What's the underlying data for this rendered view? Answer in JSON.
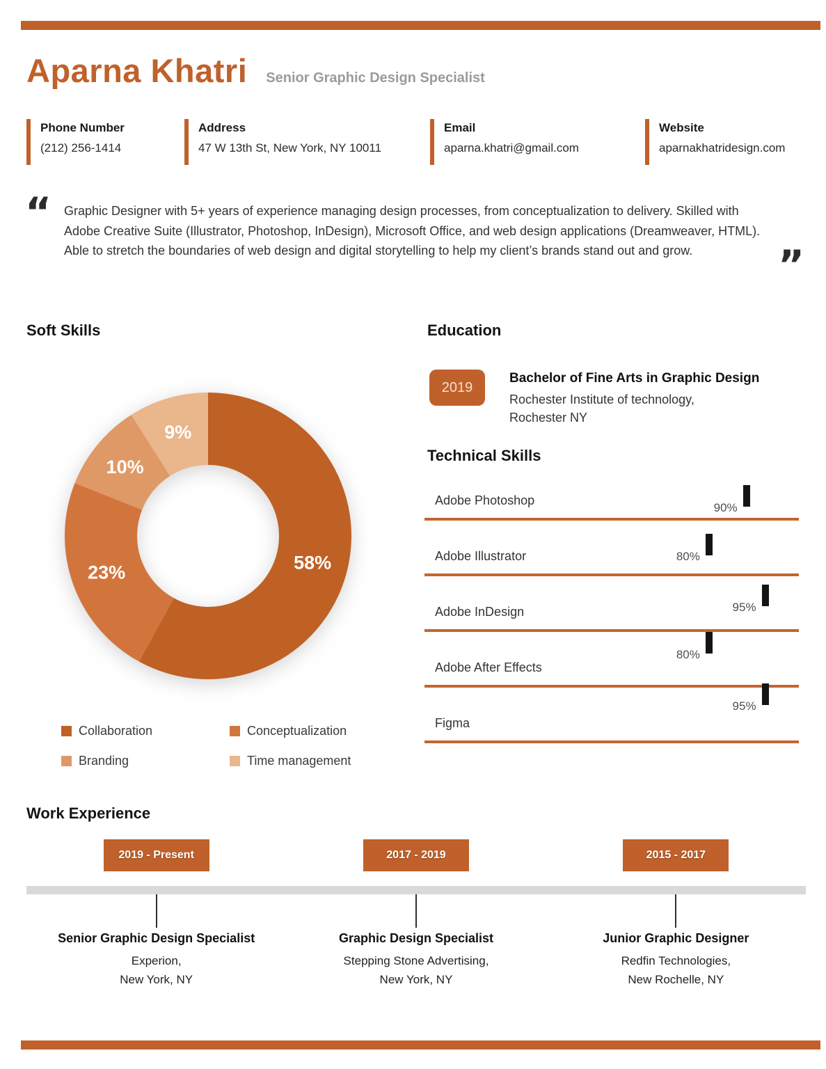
{
  "header": {
    "name": "Aparna Khatri",
    "title": "Senior Graphic Design Specialist"
  },
  "contact": [
    {
      "label": "Phone Number",
      "value": "(212) 256-1414"
    },
    {
      "label": "Address",
      "value": "47 W 13th St, New York, NY 10011"
    },
    {
      "label": "Email",
      "value": "aparna.khatri@gmail.com"
    },
    {
      "label": "Website",
      "value": "aparnakhatridesign.com"
    }
  ],
  "summary": "Graphic Designer with 5+ years of experience managing design processes, from conceptualization to delivery. Skilled with Adobe Creative Suite (Illustrator, Photoshop, InDesign), Microsoft Office, and web design applications (Dreamweaver, HTML). Able to stretch the boundaries of web design and digital storytelling to help my client’s brands stand out and grow.",
  "section_titles": {
    "soft_skills": "Soft Skills",
    "education": "Education",
    "technical_skills": "Technical Skills",
    "work_experience": "Work Experience"
  },
  "chart_data": {
    "type": "pie",
    "style": "donut",
    "title": "Soft Skills",
    "labels": [
      "Collaboration",
      "Conceptualization",
      "Branding",
      "Time management"
    ],
    "values": [
      58,
      23,
      10,
      9
    ],
    "unit": "%",
    "colors": [
      "#BF6125",
      "#D2753C",
      "#DF9966",
      "#EAB68C"
    ],
    "start_angle_deg": 0,
    "direction": "clockwise",
    "data_labels": [
      "58%",
      "23%",
      "10%",
      "9%"
    ],
    "legend_position": "bottom"
  },
  "education": {
    "year": "2019",
    "degree": "Bachelor of Fine Arts in Graphic Design",
    "school": "Rochester Institute of technology,",
    "location": "Rochester NY"
  },
  "technical_skills": [
    {
      "name": "Adobe Photoshop",
      "percent": 90
    },
    {
      "name": "Adobe Illustrator",
      "percent": 80
    },
    {
      "name": "Adobe InDesign",
      "percent": 95
    },
    {
      "name": "Adobe After Effects",
      "percent": 80
    },
    {
      "name": "Figma",
      "percent": 95
    }
  ],
  "work_experience": [
    {
      "period": "2019 - Present",
      "title": "Senior Graphic Design Specialist",
      "company": "Experion,",
      "location": "New York, NY"
    },
    {
      "period": "2017 - 2019",
      "title": "Graphic Design Specialist",
      "company": "Stepping Stone Advertising,",
      "location": "New York, NY"
    },
    {
      "period": "2015 - 2017",
      "title": "Junior Graphic Designer",
      "company": "Redfin Technologies,",
      "location": "New Rochelle, NY"
    }
  ],
  "colors": {
    "accent": "#C0612B",
    "timeline_bar": "#D9D9D9",
    "skill_marker": "#141414"
  }
}
